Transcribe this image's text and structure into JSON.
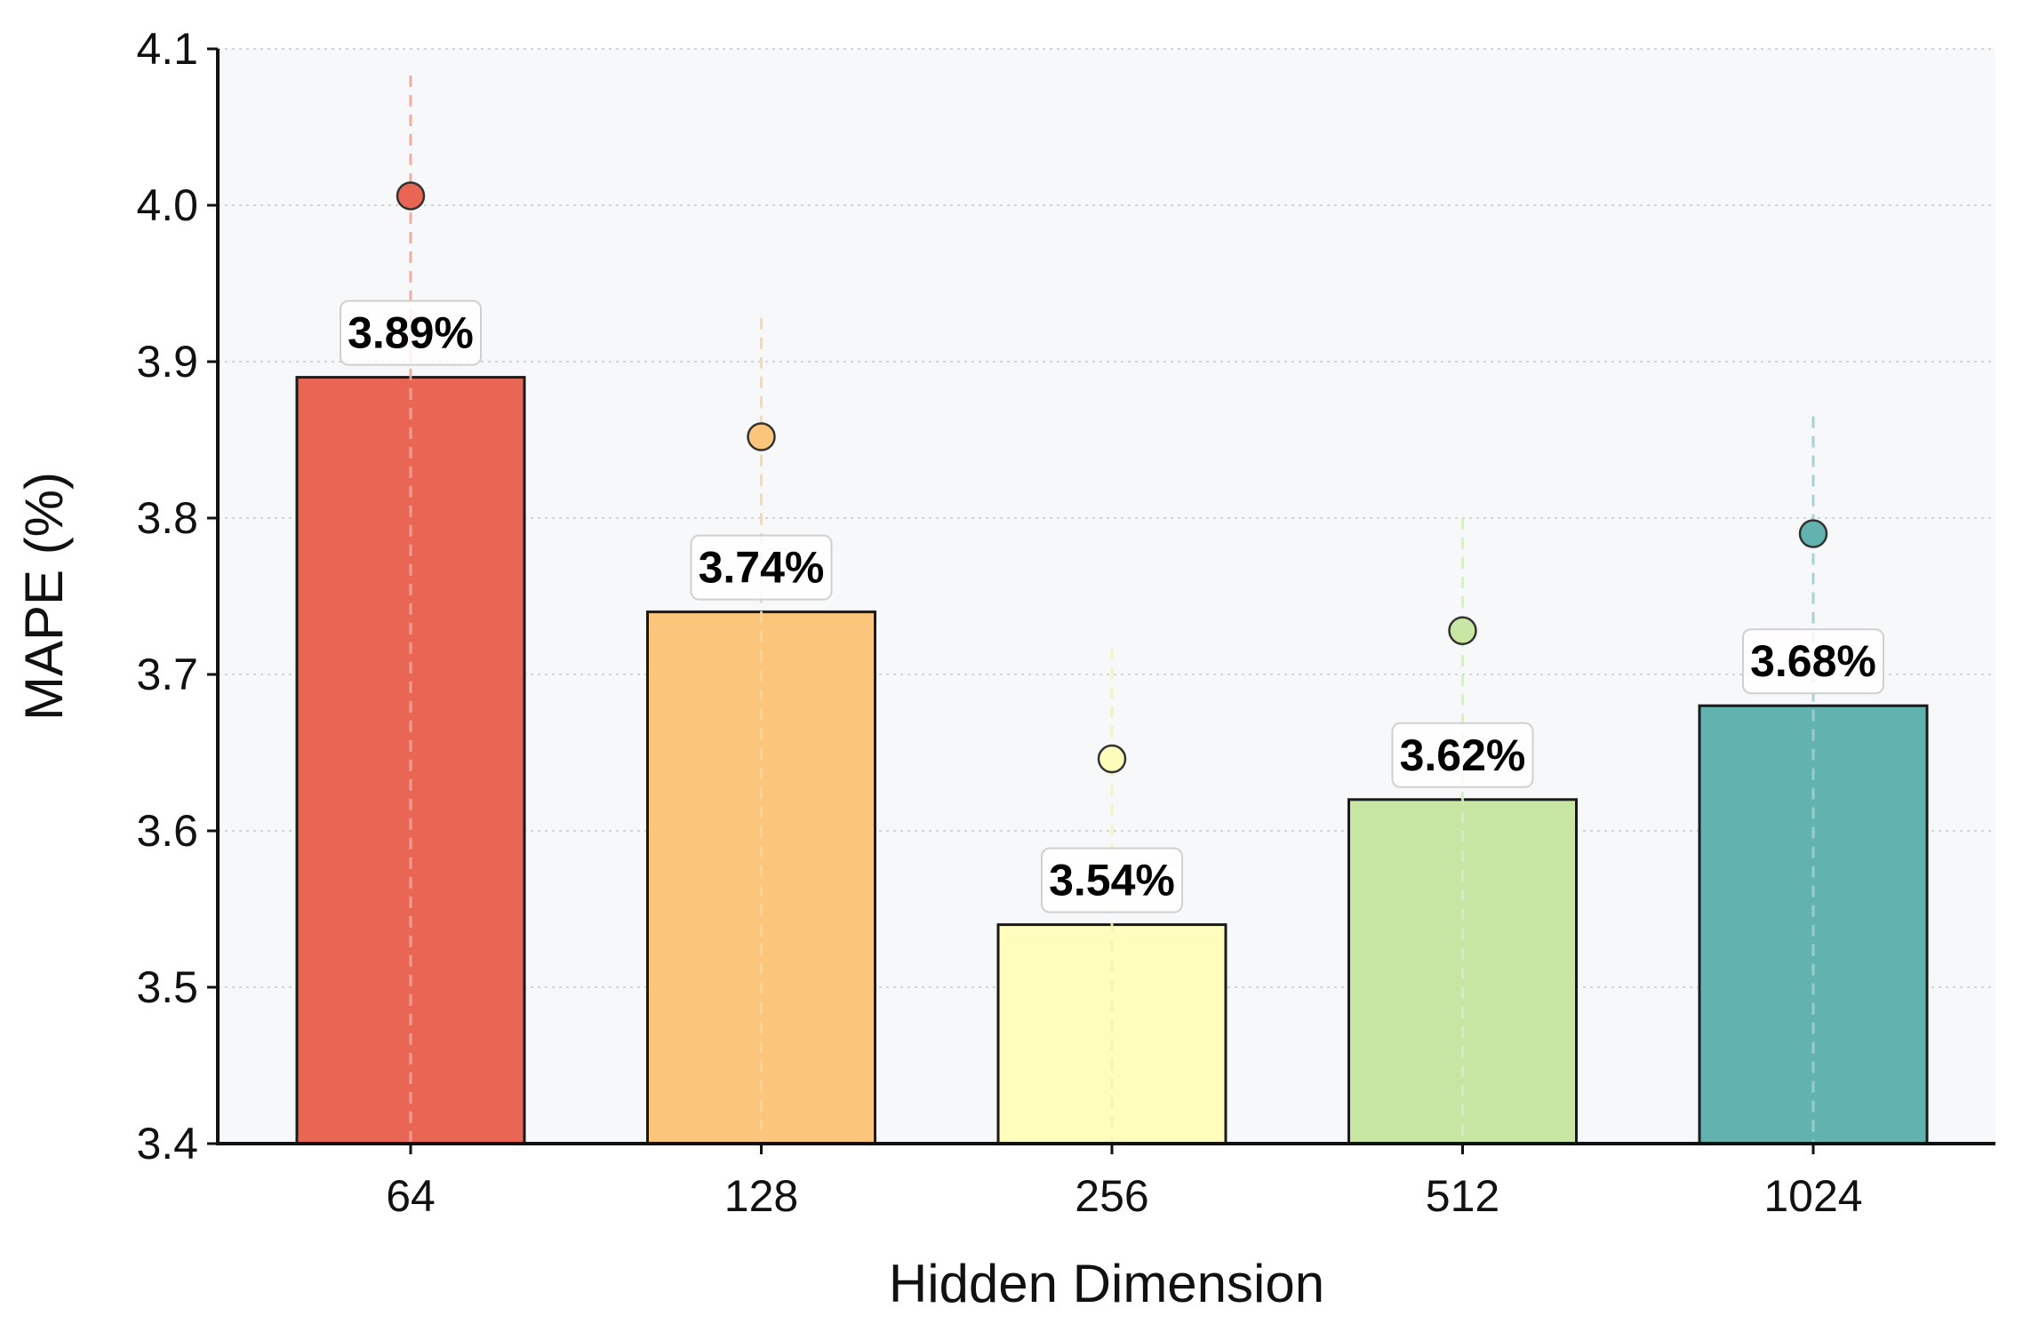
{
  "chart_data": {
    "type": "bar",
    "xlabel": "Hidden Dimension",
    "ylabel": "MAPE (%)",
    "categories": [
      "64",
      "128",
      "256",
      "512",
      "1024"
    ],
    "values": [
      3.89,
      3.74,
      3.54,
      3.62,
      3.68
    ],
    "value_labels": [
      "3.89%",
      "3.74%",
      "3.54%",
      "3.62%",
      "3.68%"
    ],
    "markers": [
      4.006,
      3.852,
      3.646,
      3.728,
      3.79
    ],
    "error_upper": [
      4.083,
      3.928,
      3.717,
      3.8,
      3.865
    ],
    "yticks": [
      "3.4",
      "3.5",
      "3.6",
      "3.7",
      "3.8",
      "3.9",
      "4.0",
      "4.1"
    ],
    "ylim": [
      3.4,
      4.1
    ],
    "grid": "horizontal-dotted",
    "legend": "none",
    "colors": [
      "#ea6654",
      "#fbc57b",
      "#fefdbc",
      "#c7e6a3",
      "#62b2b0"
    ],
    "line_colors": [
      "#f2a49a",
      "#fbd5a4",
      "#f3f3b8",
      "#d6edc4",
      "#9ed0cf"
    ]
  }
}
